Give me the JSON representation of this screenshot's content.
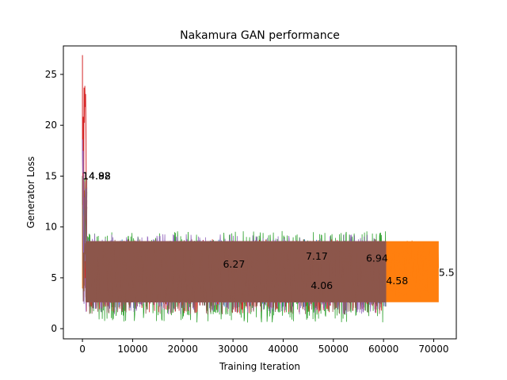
{
  "chart_data": {
    "type": "line",
    "title": "Nakamura GAN performance",
    "xlabel": "Training Iteration",
    "ylabel": "Generator Loss",
    "xlim": [
      -3800,
      74500
    ],
    "ylim": [
      -1.0,
      27.8
    ],
    "grid": false,
    "legend": "none",
    "xticks": [
      0,
      10000,
      20000,
      30000,
      40000,
      50000,
      60000,
      70000
    ],
    "xtick_labels": [
      "0",
      "10000",
      "20000",
      "30000",
      "40000",
      "50000",
      "60000",
      "70000"
    ],
    "yticks": [
      0,
      5,
      10,
      15,
      20,
      25
    ],
    "ytick_labels": [
      "0",
      "5",
      "10",
      "15",
      "20",
      "25"
    ],
    "series": [
      {
        "color": "#1f77b4",
        "end_x": 60500,
        "band_low": 2.0,
        "band_high": 8.8,
        "peak_initial": 15.0,
        "early_max": 9.3
      },
      {
        "color": "#ff7f0e",
        "end_x": 71000,
        "band_low": 2.9,
        "band_high": 8.7,
        "peak_initial": 15.0,
        "early_max": 9.0
      },
      {
        "color": "#2ca02c",
        "end_x": 60500,
        "band_low": 0.6,
        "band_high": 9.6,
        "peak_initial": 15.0,
        "early_max": 9.6
      },
      {
        "color": "#d62728",
        "end_x": 60500,
        "band_low": 1.5,
        "band_high": 8.8,
        "peak_initial": 26.9,
        "early_max": 9.0
      },
      {
        "color": "#9467bd",
        "end_x": 60500,
        "band_low": 1.4,
        "band_high": 9.3,
        "peak_initial": 18.6,
        "early_max": 9.3
      },
      {
        "color": "#8c564b",
        "end_x": 60500,
        "band_low": 1.4,
        "band_high": 8.8,
        "peak_initial": 15.0,
        "early_max": 8.9
      }
    ],
    "annotations": [
      {
        "text": "14.92",
        "x": 0,
        "y": 15.0
      },
      {
        "text": "14.98",
        "x": 0,
        "y": 15.0
      },
      {
        "text": "14.88",
        "x": 0,
        "y": 15.0
      },
      {
        "text": "6.27",
        "x": 28000,
        "y": 6.3
      },
      {
        "text": "7.17",
        "x": 44500,
        "y": 7.1
      },
      {
        "text": "6.94",
        "x": 56500,
        "y": 6.9
      },
      {
        "text": "4.06",
        "x": 45500,
        "y": 4.2
      },
      {
        "text": "4.58",
        "x": 60500,
        "y": 4.7
      },
      {
        "text": "5.5",
        "x": 71000,
        "y": 5.5
      }
    ]
  }
}
